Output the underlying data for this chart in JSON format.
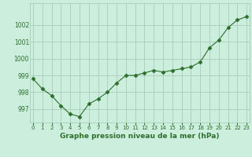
{
  "x": [
    0,
    1,
    2,
    3,
    4,
    5,
    6,
    7,
    8,
    9,
    10,
    11,
    12,
    13,
    14,
    15,
    16,
    17,
    18,
    19,
    20,
    21,
    22,
    23
  ],
  "y": [
    998.8,
    998.2,
    997.8,
    997.2,
    996.7,
    996.55,
    997.3,
    997.6,
    998.0,
    998.55,
    999.0,
    999.0,
    999.15,
    999.3,
    999.2,
    999.3,
    999.4,
    999.5,
    999.8,
    1000.65,
    1001.1,
    1001.85,
    1002.3,
    1002.5
  ],
  "line_color": "#2d6e2d",
  "marker": "D",
  "markersize": 2.5,
  "bg_color": "#cceedd",
  "grid_color": "#aaccbb",
  "xlabel": "Graphe pression niveau de la mer (hPa)",
  "xlabel_color": "#2d6e2d",
  "tick_color": "#2d6e2d",
  "ylim": [
    996.2,
    1003.3
  ],
  "yticks": [
    997,
    998,
    999,
    1000,
    1001,
    1002
  ],
  "xlim": [
    -0.3,
    23.3
  ],
  "figsize": [
    3.2,
    2.0
  ],
  "dpi": 100
}
